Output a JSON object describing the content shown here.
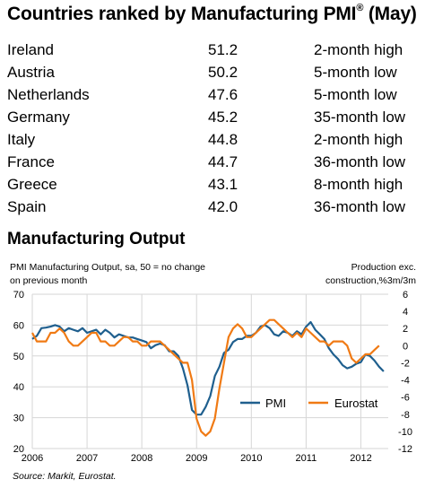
{
  "table": {
    "title": "Countries ranked by Manufacturing PMI",
    "title_sup": "®",
    "title_suffix": "(May)",
    "rows": [
      {
        "country": "Ireland",
        "pmi": "51.2",
        "status": "2-month high"
      },
      {
        "country": "Austria",
        "pmi": "50.2",
        "status": "5-month low"
      },
      {
        "country": "Netherlands",
        "pmi": "47.6",
        "status": "5-month low"
      },
      {
        "country": "Germany",
        "pmi": "45.2",
        "status": "35-month low"
      },
      {
        "country": "Italy",
        "pmi": "44.8",
        "status": "2-month high"
      },
      {
        "country": "France",
        "pmi": "44.7",
        "status": "36-month low"
      },
      {
        "country": "Greece",
        "pmi": "43.1",
        "status": "8-month high"
      },
      {
        "country": "Spain",
        "pmi": "42.0",
        "status": "36-month low"
      }
    ]
  },
  "chart_heading": "Manufacturing Output",
  "source": "Source: Markit, Eurostat.",
  "chart_data": {
    "type": "line",
    "left_axis_label": [
      "PMI Manufacturing Output, sa, 50 = no change",
      "on previous month"
    ],
    "right_axis_label": [
      "Production exc.",
      "construction,%3m/3m"
    ],
    "x_ticks": [
      "2006",
      "2007",
      "2008",
      "2009",
      "2010",
      "2011",
      "2012"
    ],
    "y_left": {
      "min": 20,
      "max": 70,
      "ticks": [
        20,
        30,
        40,
        50,
        60,
        70
      ]
    },
    "y_right": {
      "min": -12,
      "max": 6,
      "ticks": [
        -12,
        -10,
        -8,
        -6,
        -4,
        -2,
        0,
        2,
        4,
        6
      ]
    },
    "grid": true,
    "legend_position": "bottom-right",
    "colors": {
      "PMI": "#1f5f8e",
      "Eurostat": "#f07a14",
      "grid": "#d6d6d6"
    },
    "series": [
      {
        "name": "PMI",
        "axis": "left",
        "x_start": 2006.0,
        "step_months": 1,
        "values": [
          55.5,
          56.5,
          59.0,
          59.2,
          59.5,
          60.0,
          59.5,
          58.0,
          59.0,
          58.5,
          58.0,
          59.0,
          57.5,
          58.0,
          58.5,
          57.0,
          58.5,
          57.5,
          56.0,
          57.0,
          56.5,
          56.0,
          56.0,
          55.5,
          55.0,
          54.5,
          52.5,
          53.5,
          54.0,
          53.5,
          51.5,
          51.5,
          50.0,
          46.0,
          40.5,
          32.5,
          31.0,
          31.0,
          33.5,
          37.0,
          43.5,
          46.5,
          51.0,
          52.0,
          54.5,
          55.5,
          55.5,
          56.5,
          56.5,
          57.5,
          59.5,
          60.0,
          59.0,
          57.0,
          56.5,
          58.0,
          57.5,
          56.5,
          58.0,
          57.0,
          59.5,
          61.0,
          58.5,
          57.0,
          55.5,
          52.5,
          50.5,
          49.0,
          47.0,
          46.0,
          46.5,
          47.5,
          48.0,
          50.5,
          50.0,
          48.5,
          46.5,
          45.0
        ]
      },
      {
        "name": "Eurostat",
        "axis": "right",
        "x_start": 2006.0,
        "step_months": 1,
        "values": [
          1.5,
          0.5,
          0.5,
          0.5,
          1.5,
          1.5,
          2.0,
          1.5,
          0.5,
          0.0,
          0.0,
          0.5,
          1.0,
          1.5,
          1.5,
          0.5,
          0.5,
          0.0,
          0.0,
          0.5,
          1.0,
          1.0,
          0.5,
          0.5,
          0.0,
          0.0,
          0.5,
          0.5,
          0.5,
          0.0,
          -0.5,
          -1.0,
          -1.5,
          -2.0,
          -2.0,
          -4.0,
          -8.5,
          -10.0,
          -10.5,
          -10.0,
          -8.5,
          -5.0,
          -2.0,
          1.0,
          2.0,
          2.5,
          2.0,
          1.0,
          1.0,
          1.5,
          2.0,
          2.5,
          3.0,
          3.0,
          2.5,
          2.0,
          1.5,
          1.0,
          1.5,
          1.0,
          2.0,
          1.5,
          1.0,
          0.5,
          0.5,
          0.0,
          0.5,
          0.5,
          0.5,
          0.0,
          -1.5,
          -2.0,
          -1.5,
          -1.0,
          -1.0,
          -0.5,
          0.0
        ]
      }
    ]
  }
}
